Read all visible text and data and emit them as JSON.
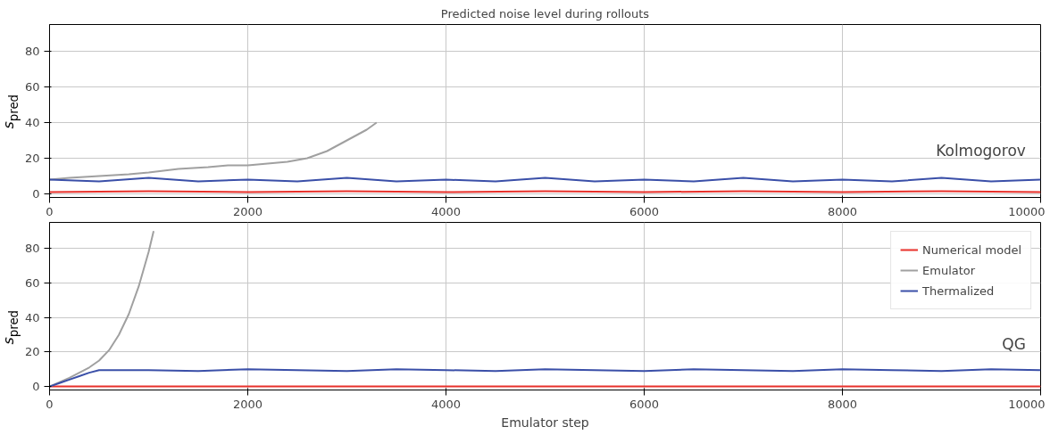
{
  "chart_data": [
    {
      "type": "line",
      "title": "Predicted noise level during rollouts",
      "ylabel": "s$_{pred}$",
      "annotations": [
        "Kolmogorov"
      ],
      "xlim": [
        0,
        10000
      ],
      "ylim": [
        -2,
        95
      ],
      "xticks": [
        0,
        2000,
        4000,
        6000,
        8000,
        10000
      ],
      "yticks": [
        0,
        20,
        40,
        60,
        80
      ],
      "grid": true,
      "legend": false,
      "series": [
        {
          "color": "#e8302a",
          "x": [
            0,
            1000,
            2000,
            3000,
            4000,
            5000,
            6000,
            7000,
            8000,
            9000,
            10000
          ],
          "values": [
            1,
            1.5,
            1,
            1.5,
            1,
            1.5,
            1,
            1.5,
            1,
            1.5,
            1
          ]
        },
        {
          "color": "#a0a0a0",
          "x": [
            0,
            200,
            500,
            800,
            1000,
            1300,
            1600,
            1800,
            2000,
            2200,
            2400,
            2600,
            2800,
            3000,
            3100,
            3200,
            3300
          ],
          "values": [
            8,
            9,
            10,
            11,
            12,
            14,
            15,
            16,
            16,
            17,
            18,
            20,
            24,
            30,
            33,
            36,
            40
          ]
        },
        {
          "color": "#3a4fa8",
          "x": [
            0,
            500,
            1000,
            1500,
            2000,
            2500,
            3000,
            3500,
            4000,
            4500,
            5000,
            5500,
            6000,
            6500,
            7000,
            7500,
            8000,
            8500,
            9000,
            9500,
            10000
          ],
          "values": [
            8,
            7,
            9,
            7,
            8,
            7,
            9,
            7,
            8,
            7,
            9,
            7,
            8,
            7,
            9,
            7,
            8,
            7,
            9,
            7,
            8
          ]
        }
      ]
    },
    {
      "type": "line",
      "xlabel": "Emulator step",
      "ylabel": "s$_{pred}$",
      "annotations": [
        "QG"
      ],
      "xlim": [
        0,
        10000
      ],
      "ylim": [
        -2,
        95
      ],
      "xticks": [
        0,
        2000,
        4000,
        6000,
        8000,
        10000
      ],
      "yticks": [
        0,
        20,
        40,
        60,
        80
      ],
      "grid": true,
      "legend": "top right",
      "series": [
        {
          "name": "Numerical model",
          "color": "#e8302a",
          "x": [
            0,
            2000,
            4000,
            6000,
            8000,
            10000
          ],
          "values": [
            0,
            0,
            0,
            0,
            0,
            0
          ]
        },
        {
          "name": "Emulator",
          "color": "#a0a0a0",
          "x": [
            0,
            200,
            300,
            400,
            500,
            600,
            700,
            800,
            900,
            1000,
            1050
          ],
          "values": [
            0,
            5,
            8,
            11,
            15,
            21,
            30,
            42,
            58,
            78,
            90
          ]
        },
        {
          "name": "Thermalized",
          "color": "#3a4fa8",
          "x": [
            0,
            100,
            200,
            300,
            400,
            500,
            1000,
            1500,
            2000,
            2500,
            3000,
            3500,
            4000,
            4500,
            5000,
            5500,
            6000,
            6500,
            7000,
            7500,
            8000,
            8500,
            9000,
            9500,
            10000
          ],
          "values": [
            0,
            2,
            4,
            6,
            8,
            9.5,
            9.5,
            9,
            10,
            9.5,
            9,
            10,
            9.5,
            9,
            10,
            9.5,
            9,
            10,
            9.5,
            9,
            10,
            9.5,
            9,
            10,
            9.5
          ]
        }
      ]
    }
  ]
}
